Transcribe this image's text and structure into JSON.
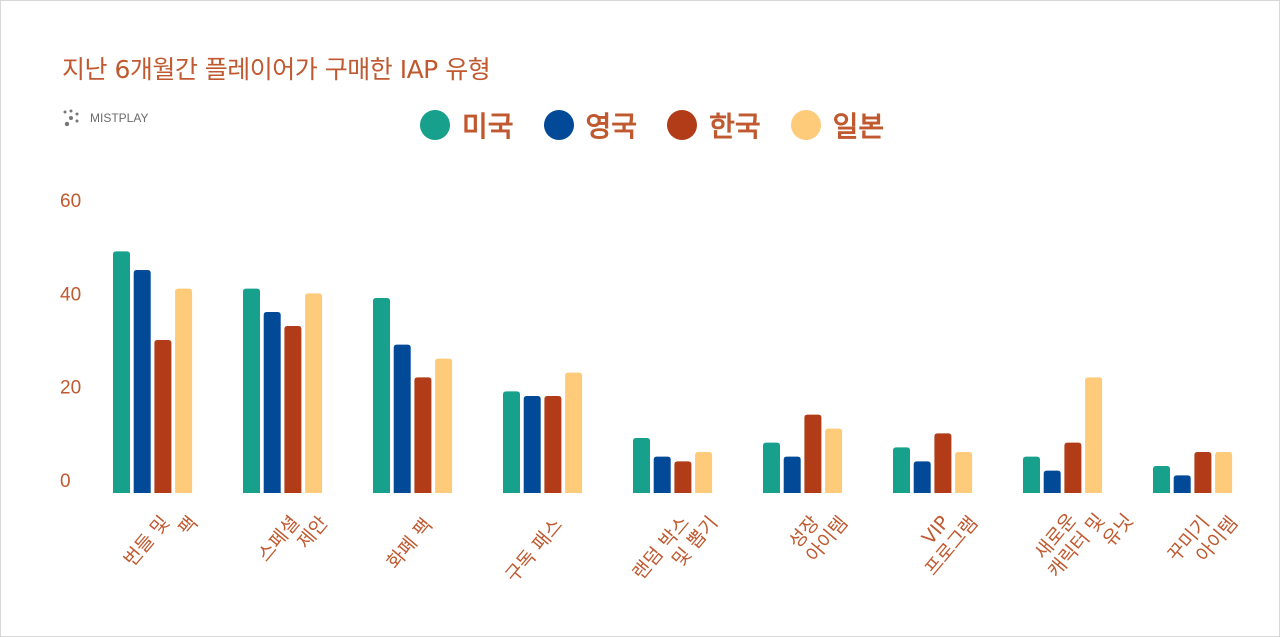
{
  "title": "지난 6개월간 플레이어가 구매한 IAP 유형",
  "logo": "MISTPLAY",
  "chart_data": {
    "type": "bar",
    "title": "지난 6개월간 플레이어가 구매한 IAP 유형",
    "xlabel": "",
    "ylabel": "",
    "ylim": [
      0,
      60
    ],
    "yticks": [
      "0",
      "20",
      "40",
      "60"
    ],
    "grid": false,
    "legend_position": "top-center",
    "categories": [
      [
        "번들 및",
        "팩"
      ],
      [
        "스페셜",
        "제안"
      ],
      [
        "화폐 팩"
      ],
      [
        "구독 패스"
      ],
      [
        "랜덤 박스",
        "및 뽑기"
      ],
      [
        "성장",
        "아이템"
      ],
      [
        "VIP",
        "프로그램"
      ],
      [
        "새로운",
        "캐릭터 및",
        "유닛"
      ],
      [
        "꾸미기",
        "아이템"
      ]
    ],
    "series": [
      {
        "name": "미국",
        "color": "#17a08c",
        "values": [
          49,
          41,
          39,
          19,
          9,
          8,
          7,
          5,
          3
        ]
      },
      {
        "name": "영국",
        "color": "#024a98",
        "values": [
          45,
          36,
          29,
          18,
          5,
          5,
          4,
          2,
          1
        ]
      },
      {
        "name": "한국",
        "color": "#b13c17",
        "values": [
          30,
          33,
          22,
          18,
          4,
          14,
          10,
          8,
          6
        ]
      },
      {
        "name": "일본",
        "color": "#fdcb7a",
        "values": [
          41,
          40,
          26,
          23,
          6,
          11,
          6,
          22,
          6
        ]
      }
    ]
  }
}
